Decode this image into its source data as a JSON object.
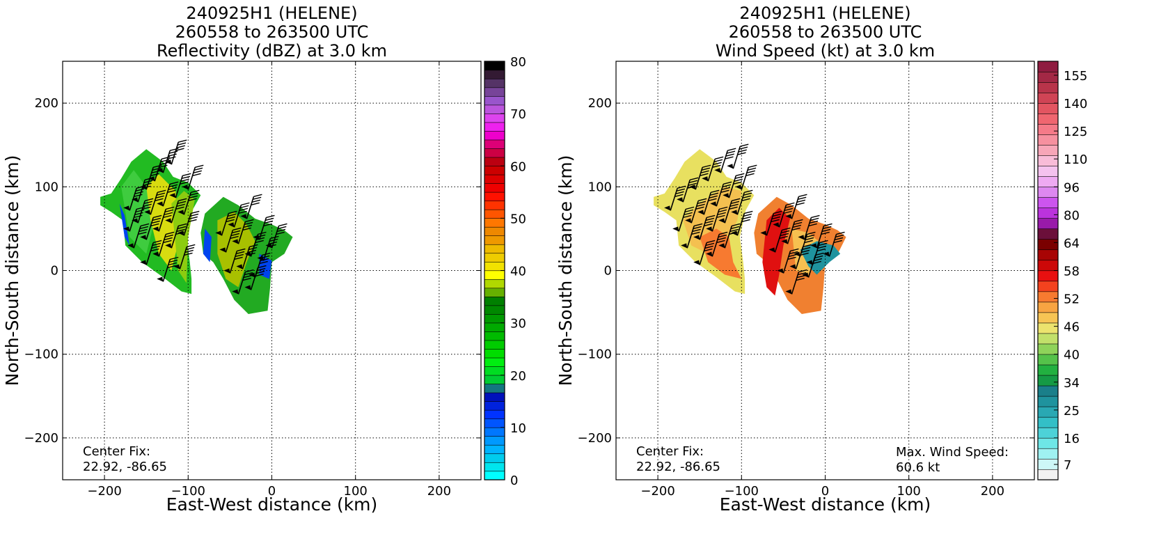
{
  "chart_data": [
    {
      "type": "heatmap",
      "title_lines": [
        "240925H1 (HELENE)",
        "260558 to 263500 UTC",
        "Reflectivity (dBZ) at 3.0 km"
      ],
      "xlabel": "East-West distance (km)",
      "ylabel": "North-South distance (km)",
      "xlim": [
        -250,
        250
      ],
      "ylim": [
        -250,
        250
      ],
      "xticks": [
        -200,
        -100,
        0,
        100,
        200
      ],
      "yticks": [
        -200,
        -100,
        0,
        100,
        200
      ],
      "grid": true,
      "annotation_lines": [
        "Center Fix:",
        "22.92, -86.65"
      ],
      "colorbar": {
        "ticks": [
          "0",
          "10",
          "20",
          "30",
          "40",
          "50",
          "60",
          "70",
          "80"
        ],
        "range": [
          0,
          80
        ],
        "colors": [
          "#00ffff",
          "#00e5ee",
          "#00ccee",
          "#00b3ff",
          "#0099ff",
          "#0077ff",
          "#0055ff",
          "#0033ff",
          "#0022dd",
          "#0011bb",
          "#137680",
          "#00cc33",
          "#00dd22",
          "#00ee11",
          "#00dd00",
          "#00cc00",
          "#00bb00",
          "#00aa00",
          "#009900",
          "#008800",
          "#008000",
          "#66b000",
          "#b0d800",
          "#ffff00",
          "#f2e200",
          "#eecc00",
          "#eebb00",
          "#ee9900",
          "#ee8800",
          "#ff7700",
          "#ff5500",
          "#ff3300",
          "#ff1100",
          "#ee0000",
          "#dd0000",
          "#cc0000",
          "#bb0011",
          "#cc0044",
          "#dd0077",
          "#ee00cc",
          "#ee22ee",
          "#dd44ee",
          "#bb55dd",
          "#9955cc",
          "#774499",
          "#553366",
          "#331a33",
          "#000000"
        ]
      },
      "data_summary": {
        "description_regions": [
          "western rainband",
          "eastern rainband"
        ],
        "value_range_dbz": [
          10,
          40
        ]
      }
    },
    {
      "type": "heatmap",
      "title_lines": [
        "240925H1 (HELENE)",
        "260558 to 263500 UTC",
        "Wind Speed (kt) at 3.0 km"
      ],
      "xlabel": "East-West distance (km)",
      "ylabel": "North-South distance (km)",
      "xlim": [
        -250,
        250
      ],
      "ylim": [
        -250,
        250
      ],
      "xticks": [
        -200,
        -100,
        0,
        100,
        200
      ],
      "yticks": [
        -200,
        -100,
        0,
        100,
        200
      ],
      "grid": true,
      "annotation_lines": [
        "Center Fix:",
        "22.92, -86.65"
      ],
      "max_annotation_lines": [
        "Max. Wind Speed:",
        "60.6 kt"
      ],
      "max_wind_speed_kt": 60.6,
      "colorbar": {
        "ticks": [
          "7",
          "16",
          "25",
          "34",
          "40",
          "46",
          "52",
          "58",
          "64",
          "80",
          "96",
          "110",
          "125",
          "140",
          "155"
        ],
        "colors": [
          "#f2f2f2",
          "#cdf7f7",
          "#9ff2f2",
          "#6ee6e6",
          "#4dd2d8",
          "#33bfc7",
          "#29a8b3",
          "#1f939e",
          "#1a7f8a",
          "#159a45",
          "#22b040",
          "#55c24a",
          "#8fd35a",
          "#c2e06a",
          "#ece36e",
          "#f7c454",
          "#f8a442",
          "#f77a30",
          "#f4421e",
          "#e81010",
          "#cc0808",
          "#a80404",
          "#7a0000",
          "#6b0f3a",
          "#991aaa",
          "#bb33dd",
          "#cc55ee",
          "#dd88f0",
          "#eeaaf2",
          "#f4c2ee",
          "#f8bcd8",
          "#f7a6b8",
          "#f6909f",
          "#f57a88",
          "#f06670",
          "#e35561",
          "#d04455",
          "#b8344a",
          "#a32845",
          "#8f1c40"
        ]
      },
      "data_summary": {
        "description_regions": [
          "western rainband",
          "eastern rainband"
        ],
        "value_range_kt": [
          16,
          60.6
        ]
      }
    }
  ]
}
